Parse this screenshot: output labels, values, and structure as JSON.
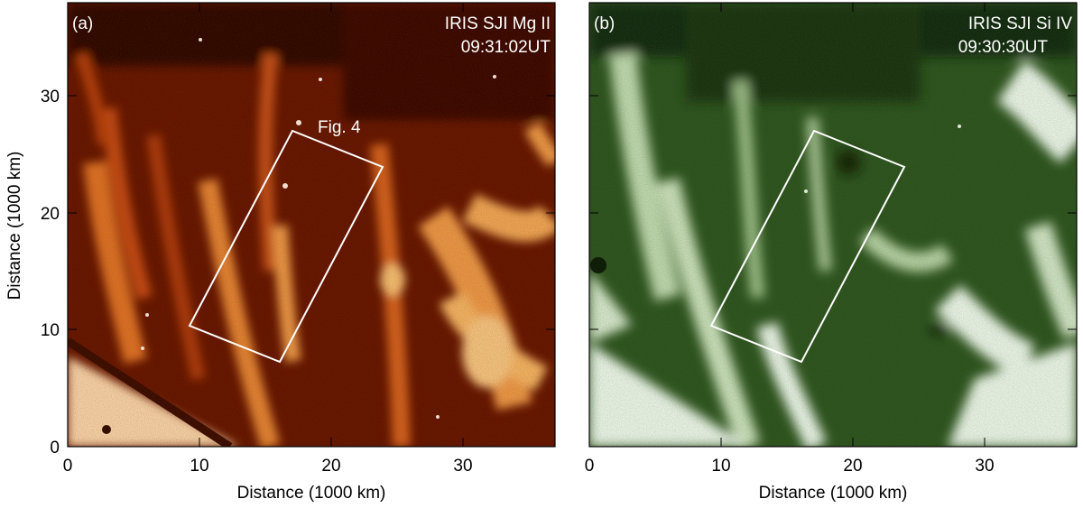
{
  "figure": {
    "panels": [
      {
        "id": "a",
        "panel_label": "(a)",
        "instrument_label": "IRIS SJI Mg II",
        "time_label": "09:31:02UT",
        "box_label": "Fig. 4",
        "colormap": "red-hot",
        "ylabel": "Distance (1000 km)",
        "xlabel": "Distance (1000 km)"
      },
      {
        "id": "b",
        "panel_label": "(b)",
        "instrument_label": "IRIS SJI Si IV",
        "time_label": "09:30:30UT",
        "box_label": "",
        "colormap": "green",
        "ylabel": "",
        "xlabel": "Distance (1000 km)"
      }
    ],
    "x_ticks": [
      "0",
      "10",
      "20",
      "30"
    ],
    "y_ticks": [
      "0",
      "10",
      "20",
      "30"
    ],
    "axis_range_x": [
      0,
      37
    ],
    "axis_range_y": [
      0,
      38
    ],
    "roi_box_corners_1000km": [
      [
        9.2,
        10.5
      ],
      [
        16.0,
        7.3
      ],
      [
        24.0,
        24.2
      ],
      [
        17.1,
        27.4
      ]
    ]
  }
}
